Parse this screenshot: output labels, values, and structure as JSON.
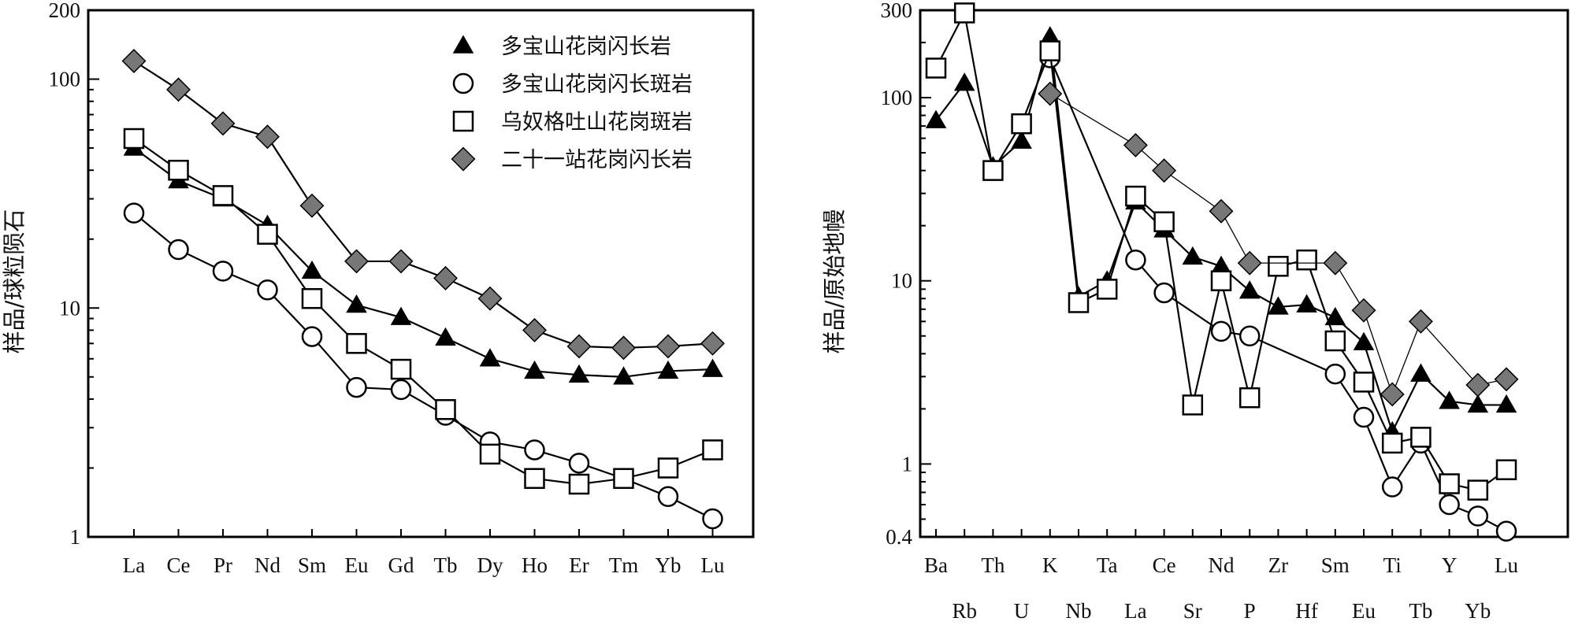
{
  "chart_data": [
    {
      "type": "line",
      "y_scale": "log",
      "ylim": [
        1,
        200
      ],
      "y_ticks": [
        "1",
        "10",
        "100",
        "200"
      ],
      "ylabel": "样品/球粒陨石",
      "categories": [
        "La",
        "Ce",
        "Pr",
        "Nd",
        "Sm",
        "Eu",
        "Gd",
        "Tb",
        "Dy",
        "Ho",
        "Er",
        "Tm",
        "Yb",
        "Lu"
      ],
      "legend_position": "top-right",
      "series": [
        {
          "name": "多宝山花岗闪长岩",
          "marker": "triangle",
          "fill": "#000000",
          "values": [
            50,
            36,
            30,
            23,
            14.5,
            10.3,
            9.1,
            7.4,
            6.0,
            5.3,
            5.1,
            5.0,
            5.3,
            5.4
          ]
        },
        {
          "name": "多宝山花岗闪长斑岩",
          "marker": "circle",
          "fill": "#ffffff",
          "values": [
            26,
            18,
            14.5,
            12,
            7.5,
            4.5,
            4.4,
            3.4,
            2.6,
            2.4,
            2.1,
            1.8,
            1.5,
            1.2
          ]
        },
        {
          "name": "乌奴格吐山花岗斑岩",
          "marker": "square",
          "fill": "#ffffff",
          "values": [
            55,
            40,
            31,
            21,
            11,
            7.0,
            5.4,
            3.6,
            2.3,
            1.8,
            1.7,
            1.8,
            2.0,
            2.4
          ]
        },
        {
          "name": "二十一站花岗闪长岩",
          "marker": "diamond",
          "fill": "#777777",
          "values": [
            120,
            90,
            64,
            56,
            28,
            16,
            16,
            13.5,
            11,
            8.0,
            6.8,
            6.7,
            6.8,
            7.0
          ]
        }
      ]
    },
    {
      "type": "line",
      "y_scale": "log",
      "ylim": [
        0.4,
        300
      ],
      "y_ticks": [
        "0.4",
        "1",
        "10",
        "100",
        "300"
      ],
      "ylabel": "样品/原始地幔",
      "categories": [
        "Ba",
        "Rb",
        "Th",
        "U",
        "K",
        "Nb",
        "Ta",
        "La",
        "Ce",
        "Sr",
        "Nd",
        "P",
        "Zr",
        "Hf",
        "Sm",
        "Eu",
        "Ti",
        "Tb",
        "Y",
        "Yb",
        "Lu"
      ],
      "series": [
        {
          "name": "多宝山花岗闪长岩",
          "marker": "triangle",
          "fill": "#000000",
          "values": [
            75,
            120,
            42,
            58,
            215,
            8.2,
            10,
            27,
            19,
            13.5,
            12,
            8.8,
            7.2,
            7.4,
            6.3,
            4.6,
            1.5,
            3.1,
            2.2,
            2.1,
            2.1
          ]
        },
        {
          "name": "多宝山花岗闪长斑岩",
          "marker": "circle",
          "fill": "#ffffff",
          "values": [
            null,
            null,
            null,
            null,
            165,
            null,
            null,
            13,
            8.6,
            null,
            5.3,
            5.0,
            null,
            null,
            3.1,
            1.8,
            0.75,
            1.3,
            0.6,
            0.52,
            0.43
          ]
        },
        {
          "name": "乌奴格吐山花岗斑岩",
          "marker": "square",
          "fill": "#ffffff",
          "values": [
            145,
            290,
            40,
            72,
            180,
            7.6,
            9.0,
            29,
            21,
            2.1,
            10,
            2.3,
            12,
            13,
            4.7,
            2.8,
            1.3,
            1.4,
            0.78,
            0.72,
            0.93
          ]
        },
        {
          "name": "二十一站花岗闪长岩",
          "marker": "diamond",
          "fill": "#777777",
          "values": [
            null,
            null,
            null,
            null,
            105,
            null,
            null,
            55,
            40,
            null,
            24,
            12.5,
            null,
            null,
            12.5,
            6.9,
            2.4,
            6.0,
            null,
            2.7,
            2.9
          ]
        }
      ]
    }
  ]
}
